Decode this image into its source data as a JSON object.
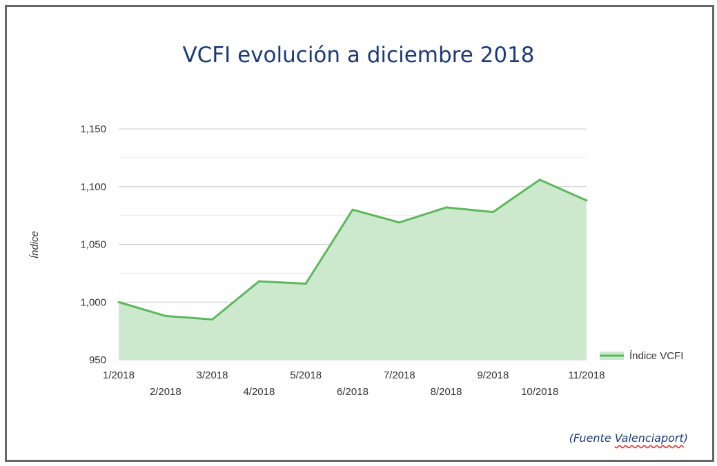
{
  "chart_data": {
    "type": "area",
    "title": "VCFI evolución a diciembre 2018",
    "xlabel": "",
    "ylabel": "Índice",
    "categories": [
      "1/2018",
      "2/2018",
      "3/2018",
      "4/2018",
      "5/2018",
      "6/2018",
      "7/2018",
      "8/2018",
      "9/2018",
      "10/2018",
      "11/2018"
    ],
    "series": [
      {
        "name": "Índice VCFI",
        "values": [
          1000,
          988,
          985,
          1018,
          1016,
          1080,
          1069,
          1082,
          1078,
          1106,
          1088
        ]
      }
    ],
    "ylim": [
      950,
      1150
    ],
    "yticks": [
      950,
      1000,
      1050,
      1100,
      1150
    ],
    "ytick_labels": [
      "950",
      "1,000",
      "1,050",
      "1,100",
      "1,150"
    ],
    "grid": true,
    "legend": "right",
    "colors": {
      "line": "#5cb85c",
      "fill": "#cde9cd",
      "title": "#1b3a7a"
    }
  },
  "source": {
    "prefix": "(Fuente ",
    "name": "Valenciaport",
    "suffix": ")"
  }
}
